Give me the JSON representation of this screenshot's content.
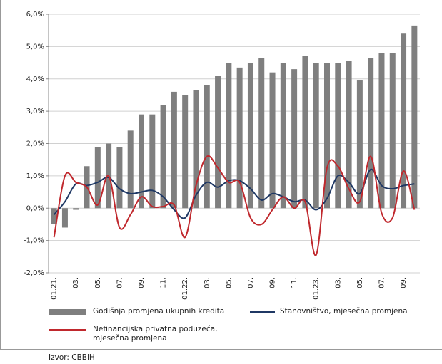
{
  "chart_data": {
    "type": "bar-line",
    "categories": [
      "01.21.",
      null,
      "03.",
      null,
      "05.",
      null,
      "07.",
      null,
      "09.",
      null,
      "11.",
      null,
      "01.22.",
      null,
      "03.",
      null,
      "05.",
      null,
      "07.",
      null,
      "09.",
      null,
      "11.",
      null,
      "01.23.",
      null,
      "03.",
      null,
      "05.",
      null,
      "07.",
      null,
      "09.",
      null
    ],
    "series": [
      {
        "name": "Godišnja promjena ukupnih kredita",
        "color": "#7f7f7f",
        "kind": "bar",
        "values": [
          -0.5,
          -0.6,
          -0.05,
          1.3,
          1.9,
          2.0,
          1.9,
          2.4,
          2.9,
          2.9,
          3.2,
          3.6,
          3.5,
          3.65,
          3.8,
          4.1,
          4.5,
          4.35,
          4.5,
          4.65,
          4.2,
          4.5,
          4.3,
          4.7,
          4.5,
          4.5,
          4.5,
          4.55,
          3.95,
          4.65,
          4.8,
          4.8,
          5.4,
          5.65
        ]
      },
      {
        "name": "Stanovništvo, mjesečna promjena",
        "color": "#1f3864",
        "kind": "line",
        "values": [
          -0.2,
          0.2,
          0.75,
          0.7,
          0.8,
          0.95,
          0.6,
          0.45,
          0.5,
          0.55,
          0.35,
          -0.05,
          -0.3,
          0.4,
          0.8,
          0.65,
          0.85,
          0.85,
          0.6,
          0.25,
          0.45,
          0.35,
          0.2,
          0.25,
          -0.05,
          0.3,
          1.0,
          0.8,
          0.45,
          1.2,
          0.7,
          0.6,
          0.7,
          0.75
        ]
      },
      {
        "name": "Nefinancijska privatna poduzeća, mjesečna promjena",
        "color": "#c0282d",
        "kind": "line",
        "values": [
          -0.9,
          1.0,
          0.8,
          0.65,
          0.1,
          1.0,
          -0.6,
          -0.2,
          0.35,
          0.05,
          0.05,
          0.1,
          -0.9,
          0.7,
          1.6,
          1.25,
          0.8,
          0.8,
          -0.3,
          -0.5,
          -0.05,
          0.35,
          0.0,
          0.2,
          -1.45,
          1.25,
          1.3,
          0.6,
          0.2,
          1.6,
          -0.15,
          -0.3,
          1.15,
          -0.05
        ]
      }
    ],
    "ylim": [
      -2,
      6
    ],
    "yticks": [
      {
        "value": -2,
        "label": "-2,0%"
      },
      {
        "value": -1,
        "label": "-1,0%"
      },
      {
        "value": 0,
        "label": "0,0%"
      },
      {
        "value": 1,
        "label": "1,0%"
      },
      {
        "value": 2,
        "label": "2,0%"
      },
      {
        "value": 3,
        "label": "3,0%"
      },
      {
        "value": 4,
        "label": "4,0%"
      },
      {
        "value": 5,
        "label": "5,0%"
      },
      {
        "value": 6,
        "label": "6,0%"
      }
    ],
    "grid": true,
    "source": "Izvor: CBBiH"
  }
}
